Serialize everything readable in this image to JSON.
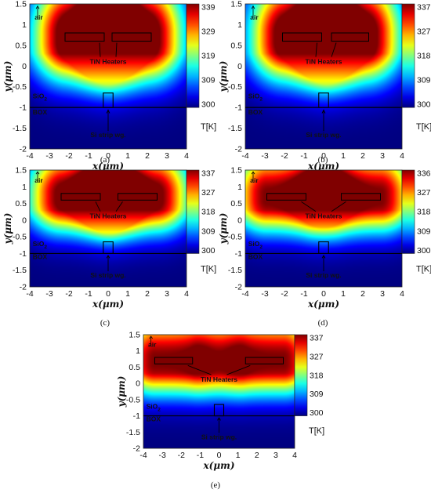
{
  "chart_data": [
    {
      "type": "heatmap",
      "panel": "(a)",
      "heaters_x": [
        [
          -2.2,
          -0.2
        ],
        [
          0.2,
          2.2
        ]
      ],
      "heater_y": [
        0.6,
        0.8
      ],
      "colorbar_ticks": [
        "339",
        "329",
        "319",
        "309",
        "300"
      ],
      "colorbar_range": [
        300,
        339
      ],
      "colorbar_unit": "T[K]",
      "xlabel": "x(μm)",
      "ylabel": "y(μm)",
      "x_ticks": [
        "-4",
        "-3",
        "-2",
        "-1",
        "0",
        "1",
        "2",
        "3",
        "4"
      ],
      "y_ticks": [
        "1.5",
        "1",
        "0.5",
        "0",
        "-0.5",
        "-1",
        "-1.5",
        "-2"
      ],
      "xlim": [
        -4,
        4
      ],
      "ylim": [
        -2,
        1.5
      ],
      "annotations": {
        "air": "air",
        "sio2": "SiO",
        "sio2_sub": "2",
        "box": "BOX",
        "heaters": "TiN Heaters",
        "wg": "Si strip wg."
      },
      "caption": "(a)"
    },
    {
      "type": "heatmap",
      "panel": "(b)",
      "heaters_x": [
        [
          -2.1,
          -0.1
        ],
        [
          0.4,
          2.3
        ]
      ],
      "heater_y": [
        0.6,
        0.8
      ],
      "colorbar_ticks": [
        "337",
        "327",
        "318",
        "309",
        "300"
      ],
      "colorbar_range": [
        300,
        337
      ],
      "colorbar_unit": "T[K]",
      "xlabel": "x(μm)",
      "ylabel": "y(μm)",
      "x_ticks": [
        "-4",
        "-3",
        "-2",
        "-1",
        "0",
        "1",
        "2",
        "3",
        "4"
      ],
      "y_ticks": [
        "1.5",
        "1",
        "0.5",
        "0",
        "-0.5",
        "-1",
        "-1.5",
        "-2"
      ],
      "xlim": [
        -4,
        4
      ],
      "ylim": [
        -2,
        1.5
      ],
      "annotations": {
        "air": "air",
        "sio2": "SiO",
        "sio2_sub": "2",
        "box": "BOX",
        "heaters": "TiN Heaters",
        "wg": "Si strip wg."
      },
      "caption": "(b)"
    },
    {
      "type": "heatmap",
      "panel": "(c)",
      "heaters_x": [
        [
          -2.4,
          -0.4
        ],
        [
          0.5,
          2.5
        ]
      ],
      "heater_y": [
        0.6,
        0.8
      ],
      "colorbar_ticks": [
        "337",
        "327",
        "318",
        "309",
        "300"
      ],
      "colorbar_range": [
        300,
        337
      ],
      "colorbar_unit": "T[K]",
      "xlabel": "x(μm)",
      "ylabel": "y(μm)",
      "x_ticks": [
        "-4",
        "-3",
        "-2",
        "-1",
        "0",
        "1",
        "2",
        "3",
        "4"
      ],
      "y_ticks": [
        "1.5",
        "1",
        "0.5",
        "0",
        "-0.5",
        "-1",
        "-1.5",
        "-2"
      ],
      "xlim": [
        -4,
        4
      ],
      "ylim": [
        -2,
        1.5
      ],
      "annotations": {
        "air": "air",
        "sio2": "SiO",
        "sio2_sub": "2",
        "box": "BOX",
        "heaters": "TiN Heaters",
        "wg": "Si strip wg."
      },
      "caption": "(c)"
    },
    {
      "type": "heatmap",
      "panel": "(d)",
      "heaters_x": [
        [
          -2.9,
          -0.9
        ],
        [
          0.9,
          2.9
        ]
      ],
      "heater_y": [
        0.6,
        0.8
      ],
      "colorbar_ticks": [
        "336",
        "327",
        "318",
        "309",
        "300"
      ],
      "colorbar_range": [
        300,
        336
      ],
      "colorbar_unit": "T[K]",
      "xlabel": "x(μm)",
      "ylabel": "y(μm)",
      "x_ticks": [
        "-4",
        "-3",
        "-2",
        "-1",
        "0",
        "1",
        "2",
        "3",
        "4"
      ],
      "y_ticks": [
        "1.5",
        "1",
        "0.5",
        "0",
        "-0.5",
        "-1",
        "-1.5",
        "-2"
      ],
      "xlim": [
        -4,
        4
      ],
      "ylim": [
        -2,
        1.5
      ],
      "annotations": {
        "air": "air",
        "sio2": "SiO",
        "sio2_sub": "2",
        "box": "BOX",
        "heaters": "TiN Heaters",
        "wg": "Si strip wg."
      },
      "caption": "(d)"
    },
    {
      "type": "heatmap",
      "panel": "(e)",
      "heaters_x": [
        [
          -3.4,
          -1.4
        ],
        [
          1.4,
          3.4
        ]
      ],
      "heater_y": [
        0.6,
        0.8
      ],
      "colorbar_ticks": [
        "337",
        "327",
        "318",
        "309",
        "300"
      ],
      "colorbar_range": [
        300,
        337
      ],
      "colorbar_unit": "T[K]",
      "xlabel": "x(μm)",
      "ylabel": "y(μm)",
      "x_ticks": [
        "-4",
        "-3",
        "-2",
        "-1",
        "0",
        "1",
        "2",
        "3",
        "4"
      ],
      "y_ticks": [
        "1.5",
        "1",
        "0.5",
        "0",
        "-0.5",
        "-1",
        "-1.5",
        "-2"
      ],
      "xlim": [
        -4,
        4
      ],
      "ylim": [
        -2,
        1.5
      ],
      "annotations": {
        "air": "air",
        "sio2": "SiO",
        "sio2_sub": "2",
        "box": "BOX",
        "heaters": "TiN Heaters",
        "wg": "Si strip wg."
      },
      "caption": "(e)"
    }
  ],
  "common": {
    "waveguide_x": [
      -0.25,
      0.25
    ],
    "waveguide_y": [
      -1,
      -0.65
    ],
    "box_top_y": -1,
    "colormap": [
      "#00008f",
      "#0000ff",
      "#0080ff",
      "#00ffff",
      "#80ff80",
      "#ffff00",
      "#ff8000",
      "#ff0000",
      "#800000"
    ]
  }
}
